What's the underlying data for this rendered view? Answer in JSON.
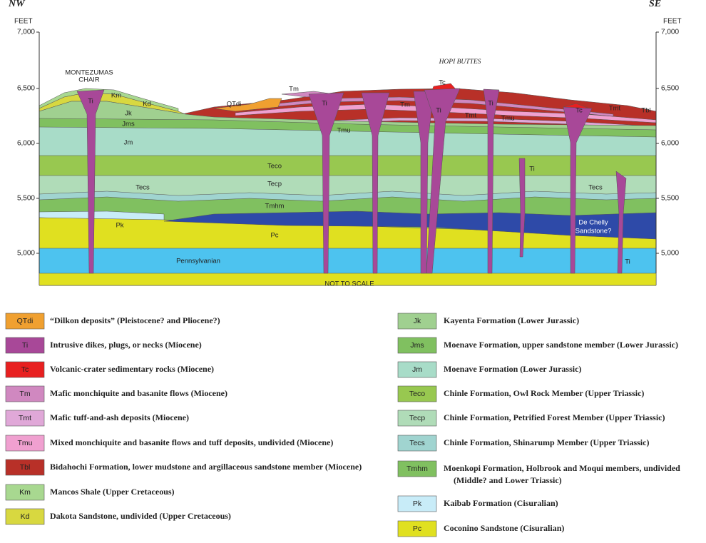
{
  "header": {
    "left": "NW",
    "right": "SE"
  },
  "axis": {
    "unit": "FEET",
    "ticks": [
      "7,000",
      "6,500",
      "6,000",
      "5,500",
      "5,000"
    ]
  },
  "section": {
    "labels": [
      "MONTEZUMAS",
      "CHAIR",
      "HOPI BUTTES",
      "Ti",
      "Km",
      "Kd",
      "Jk",
      "Jms",
      "Jm",
      "QTdi",
      "Tm",
      "Tc",
      "Tm",
      "Ti",
      "Ti",
      "Ti",
      "Tmt",
      "Tmu",
      "Tmu",
      "Tc",
      "Tmt",
      "Tbl",
      "Teco",
      "Tecp",
      "Tecs",
      "Tecs",
      "Tmhm",
      "Pk",
      "Pc",
      "Ti",
      "Ti",
      "De Chelly",
      "Sandstone?",
      "Pennsylvanian"
    ],
    "note": "NOT TO SCALE"
  },
  "legend": {
    "left": [
      {
        "code": "QTdi",
        "color": "#f0a030",
        "lines": [
          "“Dilkon deposits” (Pleistocene? and Pliocene?)"
        ]
      },
      {
        "code": "Ti",
        "color": "#a84898",
        "lines": [
          "Intrusive dikes, plugs, or necks (Miocene)"
        ]
      },
      {
        "code": "Tc",
        "color": "#e82020",
        "lines": [
          "Volcanic-crater sedimentary rocks (Miocene)"
        ]
      },
      {
        "code": "Tm",
        "color": "#d088c0",
        "lines": [
          "Mafic monchiquite and basanite flows (Miocene)"
        ]
      },
      {
        "code": "Tmt",
        "color": "#e0a8d8",
        "lines": [
          "Mafic tuff-and-ash deposits (Miocene)"
        ]
      },
      {
        "code": "Tmu",
        "color": "#f0a0d0",
        "lines": [
          "Mixed monchiquite and basanite flows and tuff deposits, undivided (Miocene)"
        ]
      },
      {
        "code": "Tbl",
        "color": "#b83028",
        "lines": [
          "Bidahochi Formation, lower mudstone and argillaceous sandstone member (Miocene)"
        ]
      },
      {
        "code": "Km",
        "color": "#a8d890",
        "lines": [
          "Mancos Shale (Upper Cretaceous)"
        ]
      },
      {
        "code": "Kd",
        "color": "#d8d840",
        "lines": [
          "Dakota Sandstone, undivided (Upper Cretaceous)"
        ]
      }
    ],
    "right": [
      {
        "code": "Jk",
        "color": "#a0d090",
        "lines": [
          "Kayenta Formation (Lower Jurassic)"
        ]
      },
      {
        "code": "Jms",
        "color": "#80c060",
        "lines": [
          "Moenave Formation, upper sandstone member (Lower Jurassic)"
        ]
      },
      {
        "code": "Jm",
        "color": "#a8dcc8",
        "lines": [
          "Moenave Formation (Lower Jurassic)"
        ]
      },
      {
        "code": "Teco",
        "color": "#98c850",
        "lines": [
          "Chinle Formation, Owl Rock Member (Upper Triassic)"
        ]
      },
      {
        "code": "Tecp",
        "color": "#b0dcb8",
        "lines": [
          "Chinle Formation, Petrified Forest Member (Upper Triassic)"
        ]
      },
      {
        "code": "Tecs",
        "color": "#a0d4d0",
        "lines": [
          "Chinle Formation, Shinarump Member (Upper Triassic)"
        ]
      },
      {
        "code": "Tmhm",
        "color": "#80c060",
        "lines": [
          "Moenkopi Formation, Holbrook and Moqui members, undivided",
          "(Middle? and Lower Triassic)"
        ]
      },
      {
        "code": "Pk",
        "color": "#c8ecf8",
        "lines": [
          "Kaibab Formation (Cisuralian)"
        ]
      },
      {
        "code": "Pc",
        "color": "#e0e020",
        "lines": [
          "Coconino Sandstone (Cisuralian)"
        ]
      }
    ]
  }
}
